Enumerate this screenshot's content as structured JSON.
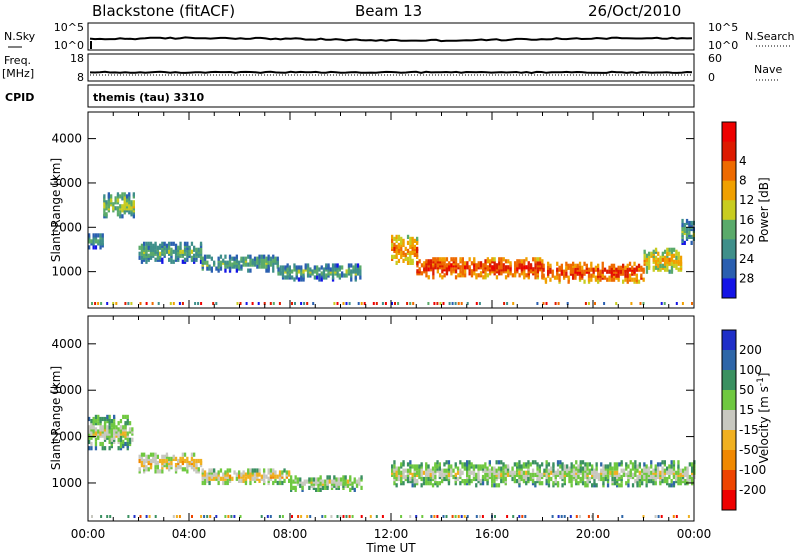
{
  "header": {
    "title": "Blackstone (fitACF)",
    "beam": "Beam 13",
    "date": "26/Oct/2010"
  },
  "top_strip": {
    "left_label": "N.Sky",
    "right_label": "N.Search",
    "left_ticks": [
      "10^5",
      "10^0"
    ],
    "right_ticks": [
      "10^5",
      "10^0"
    ]
  },
  "freq_strip": {
    "left_label_1": "Freq.",
    "left_label_2": "[MHz]",
    "right_label": "Nave",
    "left_ticks": [
      "18",
      "8"
    ],
    "right_ticks": [
      "60",
      "0"
    ]
  },
  "cpid": {
    "label": "CPID",
    "value": "themis (tau) 3310"
  },
  "chart_data": [
    {
      "type": "heatmap",
      "name": "power",
      "ylabel": "Slant Range [km]",
      "xlabel": "Time UT",
      "xlim_hours": [
        0,
        24
      ],
      "ylim_km": [
        180,
        4600
      ],
      "x_ticks": [
        "00:00",
        "04:00",
        "08:00",
        "12:00",
        "16:00",
        "20:00",
        "00:00"
      ],
      "y_ticks": [
        1000,
        2000,
        3000,
        4000
      ],
      "colorbar_label": "Power [dB]",
      "colorbar_ticks": [
        "4",
        "8",
        "12",
        "16",
        "20",
        "24",
        "28"
      ],
      "colorbar_colors": [
        "#1414e6",
        "#2a5fb0",
        "#3f8f8a",
        "#5aaa6a",
        "#c8cc20",
        "#f0a000",
        "#ee6a00",
        "#dd1a00",
        "#ee0000"
      ],
      "regions": [
        {
          "t0": 0.0,
          "t1": 0.6,
          "r_center": 1700,
          "r_width": 300,
          "level": 3
        },
        {
          "t0": 0.6,
          "t1": 1.8,
          "r_center": 2500,
          "r_width": 500,
          "level": 4
        },
        {
          "t0": 2.0,
          "t1": 4.5,
          "r_center": 1450,
          "r_width": 450,
          "level": 3
        },
        {
          "t0": 4.5,
          "t1": 7.5,
          "r_center": 1200,
          "r_width": 350,
          "level": 3
        },
        {
          "t0": 7.5,
          "t1": 10.8,
          "r_center": 1000,
          "r_width": 350,
          "level": 3
        },
        {
          "t0": 12.0,
          "t1": 13.0,
          "r_center": 1500,
          "r_width": 600,
          "level": 6
        },
        {
          "t0": 13.0,
          "t1": 18.0,
          "r_center": 1100,
          "r_width": 450,
          "level": 7
        },
        {
          "t0": 18.0,
          "t1": 22.0,
          "r_center": 1000,
          "r_width": 450,
          "level": 7
        },
        {
          "t0": 22.0,
          "t1": 23.5,
          "r_center": 1250,
          "r_width": 500,
          "level": 5
        },
        {
          "t0": 23.5,
          "t1": 24.0,
          "r_center": 1900,
          "r_width": 500,
          "level": 3
        }
      ]
    },
    {
      "type": "heatmap",
      "name": "velocity",
      "ylabel": "Slant Range [km]",
      "xlabel": "Time UT",
      "xlim_hours": [
        0,
        24
      ],
      "ylim_km": [
        180,
        4600
      ],
      "x_ticks": [
        "00:00",
        "04:00",
        "08:00",
        "12:00",
        "16:00",
        "20:00",
        "00:00"
      ],
      "y_ticks": [
        1000,
        2000,
        3000,
        4000
      ],
      "colorbar_label": "Velocity [m s^-1]",
      "colorbar_ticks": [
        "200",
        "100",
        "50",
        "15",
        "-15",
        "-50",
        "-100",
        "-200"
      ],
      "colorbar_colors": [
        "#1f2fc8",
        "#2e66a8",
        "#3a9060",
        "#6fc840",
        "#c8c8c0",
        "#f0b020",
        "#f08800",
        "#ee4400",
        "#ee0000"
      ],
      "regions": [
        {
          "t0": 0.0,
          "t1": 1.8,
          "r_center": 2100,
          "r_width": 700,
          "level": 4
        },
        {
          "t0": 2.0,
          "t1": 4.5,
          "r_center": 1450,
          "r_width": 400,
          "level": 5
        },
        {
          "t0": 4.5,
          "t1": 8.0,
          "r_center": 1150,
          "r_width": 300,
          "level": 5
        },
        {
          "t0": 8.0,
          "t1": 10.8,
          "r_center": 1000,
          "r_width": 300,
          "level": 4
        },
        {
          "t0": 12.0,
          "t1": 24.0,
          "r_center": 1200,
          "r_width": 500,
          "level": 4
        }
      ]
    }
  ]
}
